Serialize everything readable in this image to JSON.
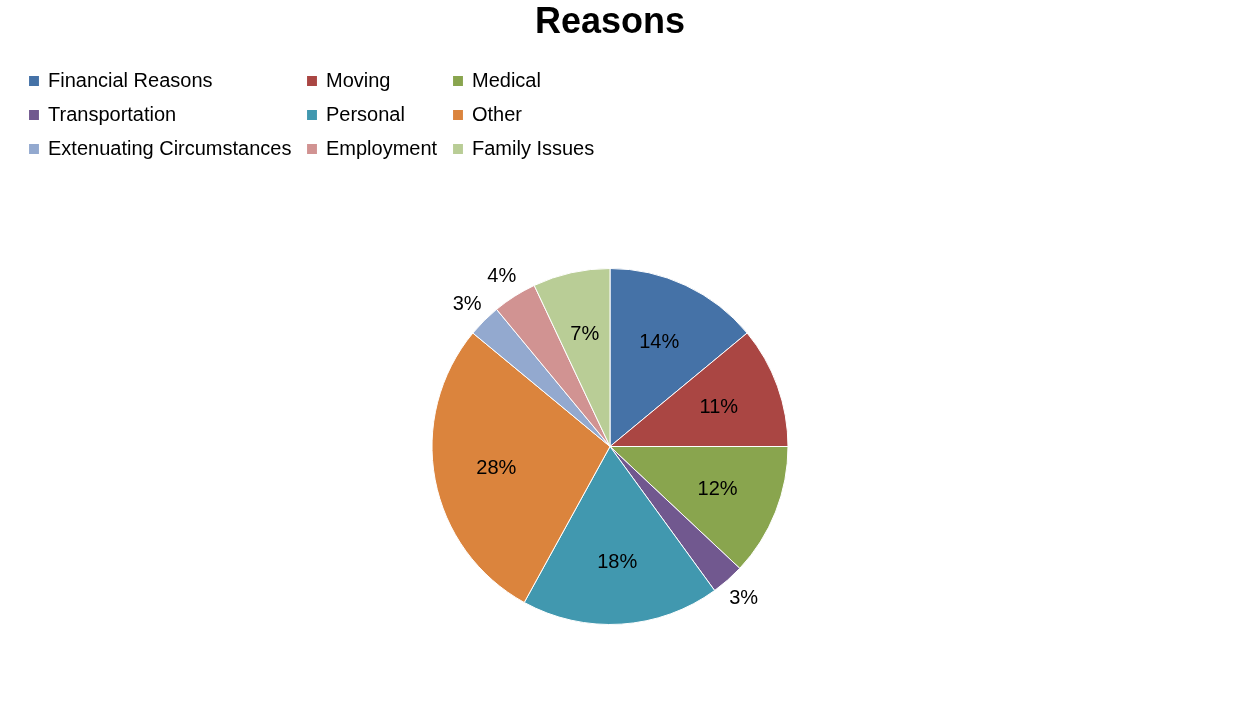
{
  "chart_data": {
    "type": "pie",
    "title": "Reasons",
    "categories": [
      "Financial Reasons",
      "Moving",
      "Medical",
      "Transportation",
      "Personal",
      "Other",
      "Extenuating Circumstances",
      "Employment",
      "Family Issues"
    ],
    "values": [
      14,
      11,
      12,
      3,
      18,
      28,
      3,
      4,
      7
    ],
    "value_labels": [
      "14%",
      "11%",
      "12%",
      "3%",
      "18%",
      "28%",
      "3%",
      "4%",
      "7%"
    ],
    "colors": [
      "#4572a7",
      "#aa4643",
      "#89a54e",
      "#71588f",
      "#4198af",
      "#db843d",
      "#93a9cf",
      "#d19392",
      "#b9cd96"
    ],
    "legend": "top"
  }
}
